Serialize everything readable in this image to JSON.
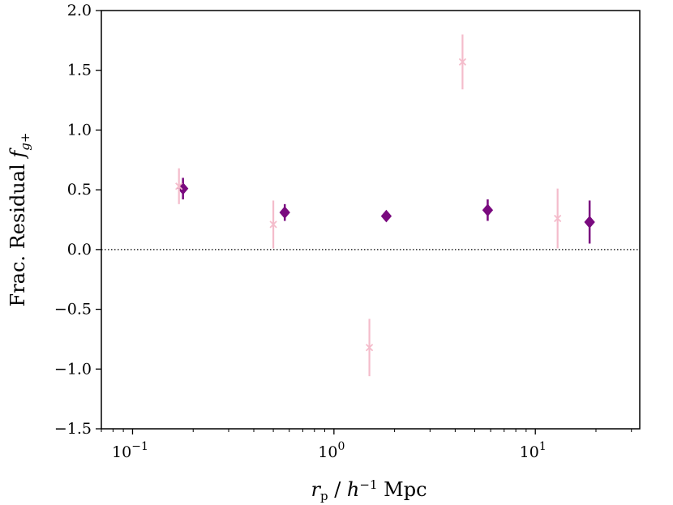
{
  "chart_data": {
    "type": "scatter",
    "xscale": "log",
    "xlim": [
      0.07,
      33
    ],
    "ylim": [
      -1.5,
      2.0
    ],
    "xlabel": "r_p / h^-1 Mpc",
    "ylabel": "Frac. Residual f_g+",
    "x_ticks": [
      {
        "value": 0.1,
        "base": "10",
        "exp": "−1"
      },
      {
        "value": 1,
        "base": "10",
        "exp": "0"
      },
      {
        "value": 10,
        "base": "10",
        "exp": "1"
      }
    ],
    "y_ticks": [
      {
        "value": 2.0,
        "label": "2.0"
      },
      {
        "value": 1.5,
        "label": "1.5"
      },
      {
        "value": 1.0,
        "label": "1.0"
      },
      {
        "value": 0.5,
        "label": "0.5"
      },
      {
        "value": 0.0,
        "label": "0.0"
      },
      {
        "value": -0.5,
        "label": "−0.5"
      },
      {
        "value": -1.0,
        "label": "−1.0"
      },
      {
        "value": -1.5,
        "label": "−1.5"
      }
    ],
    "reference_line": {
      "y": 0.0,
      "style": "dotted"
    },
    "series": [
      {
        "name": "diamond-series",
        "marker": "diamond",
        "color": "#7a0a7f",
        "points": [
          {
            "x": 0.178,
            "y": 0.51,
            "err": 0.09
          },
          {
            "x": 0.57,
            "y": 0.31,
            "err": 0.07
          },
          {
            "x": 1.82,
            "y": 0.28,
            "err": 0.04
          },
          {
            "x": 5.8,
            "y": 0.33,
            "err": 0.09
          },
          {
            "x": 18.6,
            "y": 0.23,
            "err": 0.18
          }
        ]
      },
      {
        "name": "cross-series",
        "marker": "x",
        "color": "#f4bccb",
        "points": [
          {
            "x": 0.17,
            "y": 0.53,
            "err": 0.15
          },
          {
            "x": 0.5,
            "y": 0.21,
            "err": 0.2
          },
          {
            "x": 1.5,
            "y": -0.82,
            "err": 0.24
          },
          {
            "x": 4.35,
            "y": 1.57,
            "err": 0.23
          },
          {
            "x": 12.9,
            "y": 0.26,
            "err": 0.25
          }
        ]
      }
    ]
  }
}
